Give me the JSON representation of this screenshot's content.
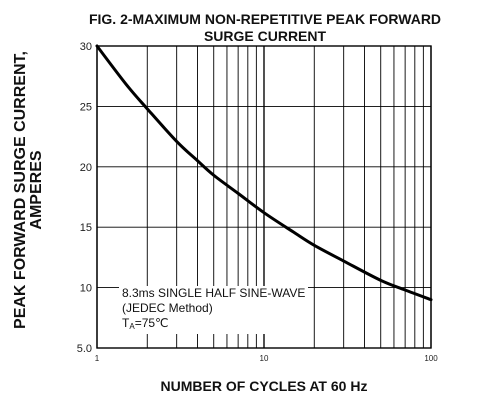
{
  "chart_data": {
    "type": "line",
    "title_line1": "FIG. 2-MAXIMUM NON-REPETITIVE PEAK FORWARD",
    "title_line2": "SURGE CURRENT",
    "ylabel_line1": "PEAK  FORWARD SURGE CURRENT,",
    "ylabel_line2": "AMPERES",
    "xlabel": "NUMBER OF CYCLES AT 60 Hz",
    "x_scale": "log",
    "xlim": [
      1,
      100
    ],
    "ylim": [
      5,
      30
    ],
    "x_ticks": [
      "1",
      "10",
      "100"
    ],
    "y_ticks": [
      "5.0",
      "10",
      "15",
      "20",
      "25",
      "30"
    ],
    "grid": true,
    "annotation": {
      "line1": "8.3ms SINGLE HALF SINE-WAVE",
      "line2": "(JEDEC Method)",
      "line3_main": "T",
      "line3_sub": "A",
      "line3_rest": "=75℃"
    },
    "series": [
      {
        "x": [
          1,
          1.5,
          2,
          3,
          4,
          5,
          7,
          10,
          15,
          20,
          30,
          50,
          70,
          100
        ],
        "y": [
          30,
          26.8,
          24.8,
          22.1,
          20.5,
          19.3,
          17.8,
          16.2,
          14.6,
          13.5,
          12.2,
          10.6,
          9.8,
          9.0
        ]
      }
    ]
  }
}
